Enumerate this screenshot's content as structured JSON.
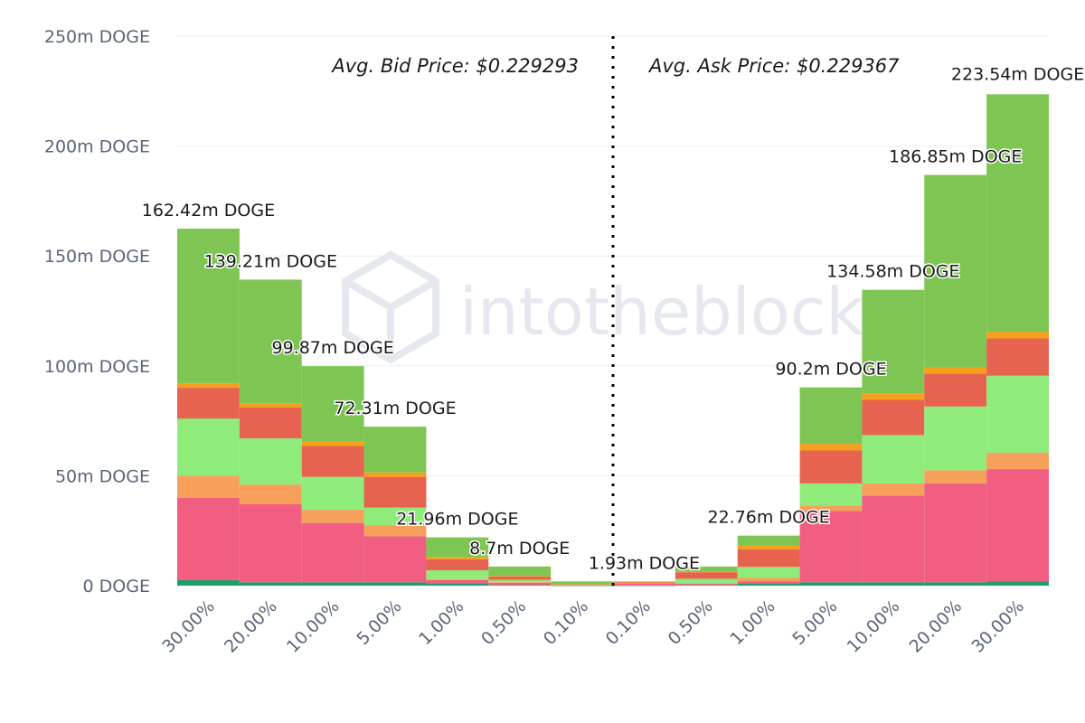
{
  "watermark": "intotheblock",
  "chart_data": {
    "type": "bar",
    "stacked": true,
    "unit": "DOGE",
    "ylim": [
      0,
      250
    ],
    "yticks": [
      "0 DOGE",
      "50m DOGE",
      "100m DOGE",
      "150m DOGE",
      "200m DOGE",
      "250m DOGE"
    ],
    "yticks_values": [
      0,
      50,
      100,
      150,
      200,
      250
    ],
    "grid": true,
    "categories": [
      "30.00%",
      "20.00%",
      "10.00%",
      "5.00%",
      "1.00%",
      "0.50%",
      "0.10%",
      "0.10%",
      "0.50%",
      "1.00%",
      "5.00%",
      "10.00%",
      "20.00%",
      "30.00%"
    ],
    "totals": [
      162.42,
      139.21,
      99.87,
      72.31,
      21.96,
      8.7,
      1.93,
      1.93,
      8.7,
      22.76,
      90.2,
      134.58,
      186.85,
      223.54
    ],
    "data_labels": [
      "162.42m DOGE",
      "139.21m DOGE",
      "99.87m DOGE",
      "72.31m DOGE",
      "21.96m DOGE",
      "8.7m DOGE",
      "",
      "1.93m DOGE",
      "",
      "22.76m DOGE",
      "90.2m DOGE",
      "134.58m DOGE",
      "186.85m DOGE",
      "223.54m DOGE"
    ],
    "series_colors": [
      "#1e9e6b",
      "#f25e82",
      "#f6a05c",
      "#8feb7a",
      "#e6644f",
      "#f5a01a",
      "#7ec553"
    ],
    "segments": [
      [
        2.5,
        37.5,
        10,
        26,
        14,
        2,
        70.42
      ],
      [
        1.5,
        35.5,
        9,
        21,
        14,
        2,
        56.21
      ],
      [
        1.5,
        27,
        6,
        15,
        14,
        2,
        34.37
      ],
      [
        1.5,
        21,
        5,
        8,
        14,
        2,
        20.81
      ],
      [
        1,
        1.5,
        0.5,
        4,
        5,
        1,
        8.96
      ],
      [
        0.3,
        1,
        0.3,
        1,
        1.5,
        0.3,
        4.3
      ],
      [
        0.05,
        0.1,
        0.05,
        0.3,
        0.1,
        0.05,
        1.28
      ],
      [
        0.05,
        1.1,
        0.05,
        0.1,
        0.4,
        0.05,
        0.18
      ],
      [
        0.3,
        0.5,
        0.3,
        2,
        3,
        0.5,
        2.1
      ],
      [
        1,
        1,
        1.5,
        5,
        8,
        2,
        4.26
      ],
      [
        1.5,
        32.5,
        2.5,
        10,
        15,
        3,
        25.7
      ],
      [
        1.5,
        39.5,
        5.5,
        22,
        16,
        3,
        47.08
      ],
      [
        1.5,
        45,
        6,
        29,
        15,
        3,
        87.35
      ],
      [
        2,
        51,
        7.5,
        35,
        17,
        3,
        108.04
      ]
    ],
    "annotations": {
      "bid": "Avg. Bid Price: $0.229293",
      "ask": "Avg. Ask Price: $0.229367"
    }
  }
}
